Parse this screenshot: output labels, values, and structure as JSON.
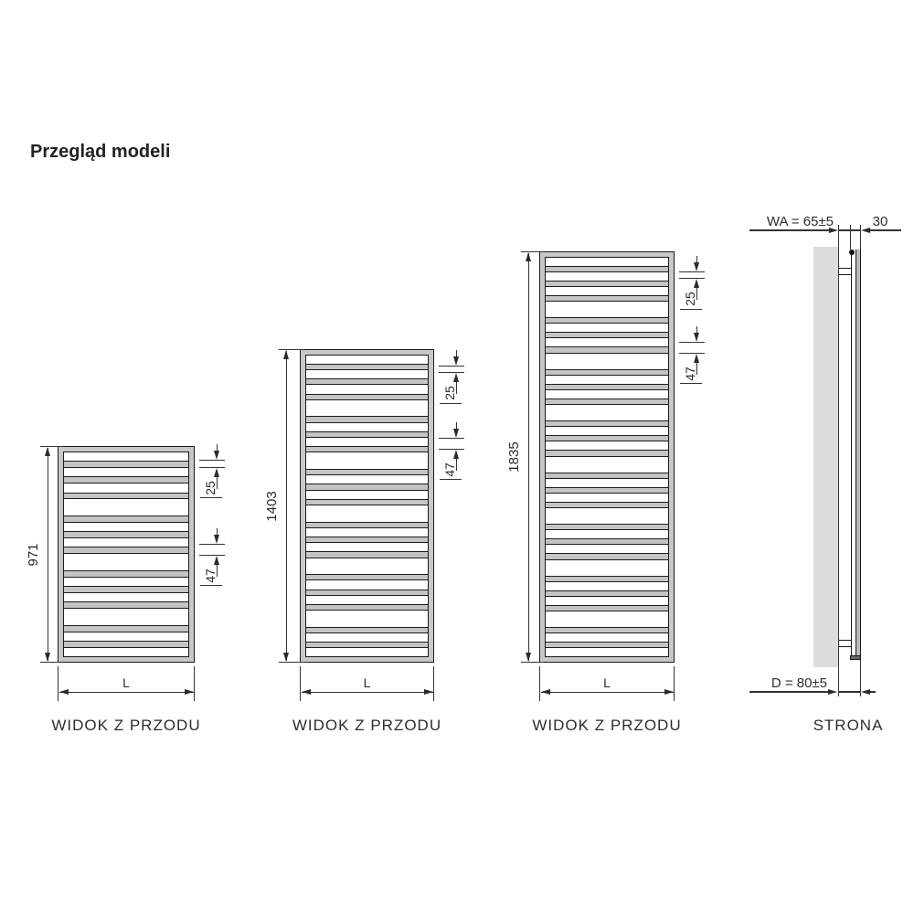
{
  "title": "Przegląd modeli",
  "views": [
    {
      "type": "front",
      "label": "WIDOK Z PRZODU",
      "height_label": "971",
      "width_label": "L",
      "tube_gap_small": "25",
      "tube_gap_large": "47",
      "tube_pattern": "wwwtwwtwwtww"
    },
    {
      "type": "front",
      "label": "WIDOK Z PRZODU",
      "height_label": "1403",
      "width_label": "L",
      "tube_gap_small": "25",
      "tube_gap_large": "47",
      "tube_pattern": "wwwtwwtwwtwwtwwtww"
    },
    {
      "type": "front",
      "label": "WIDOK Z PRZODU",
      "height_label": "1835",
      "width_label": "L",
      "tube_gap_small": "25",
      "tube_gap_large": "47",
      "tube_pattern": "wwwtwwtwwtwwtwwtwwtwwtww"
    },
    {
      "type": "side",
      "label": "STRONA",
      "wall_axis_label": "WA = 65±5",
      "tube_depth_label": "30",
      "total_depth_label": "D = 80±5"
    }
  ],
  "colors": {
    "line": "#1b1b1b",
    "dim_line": "#333333",
    "frame_fill": "#c8c8c8",
    "tube_fill": "#c4c4c4",
    "wall_fill": "#dcdcdc",
    "side_tube_fill": "#bbbbbb",
    "text": "#2a2a2a"
  }
}
